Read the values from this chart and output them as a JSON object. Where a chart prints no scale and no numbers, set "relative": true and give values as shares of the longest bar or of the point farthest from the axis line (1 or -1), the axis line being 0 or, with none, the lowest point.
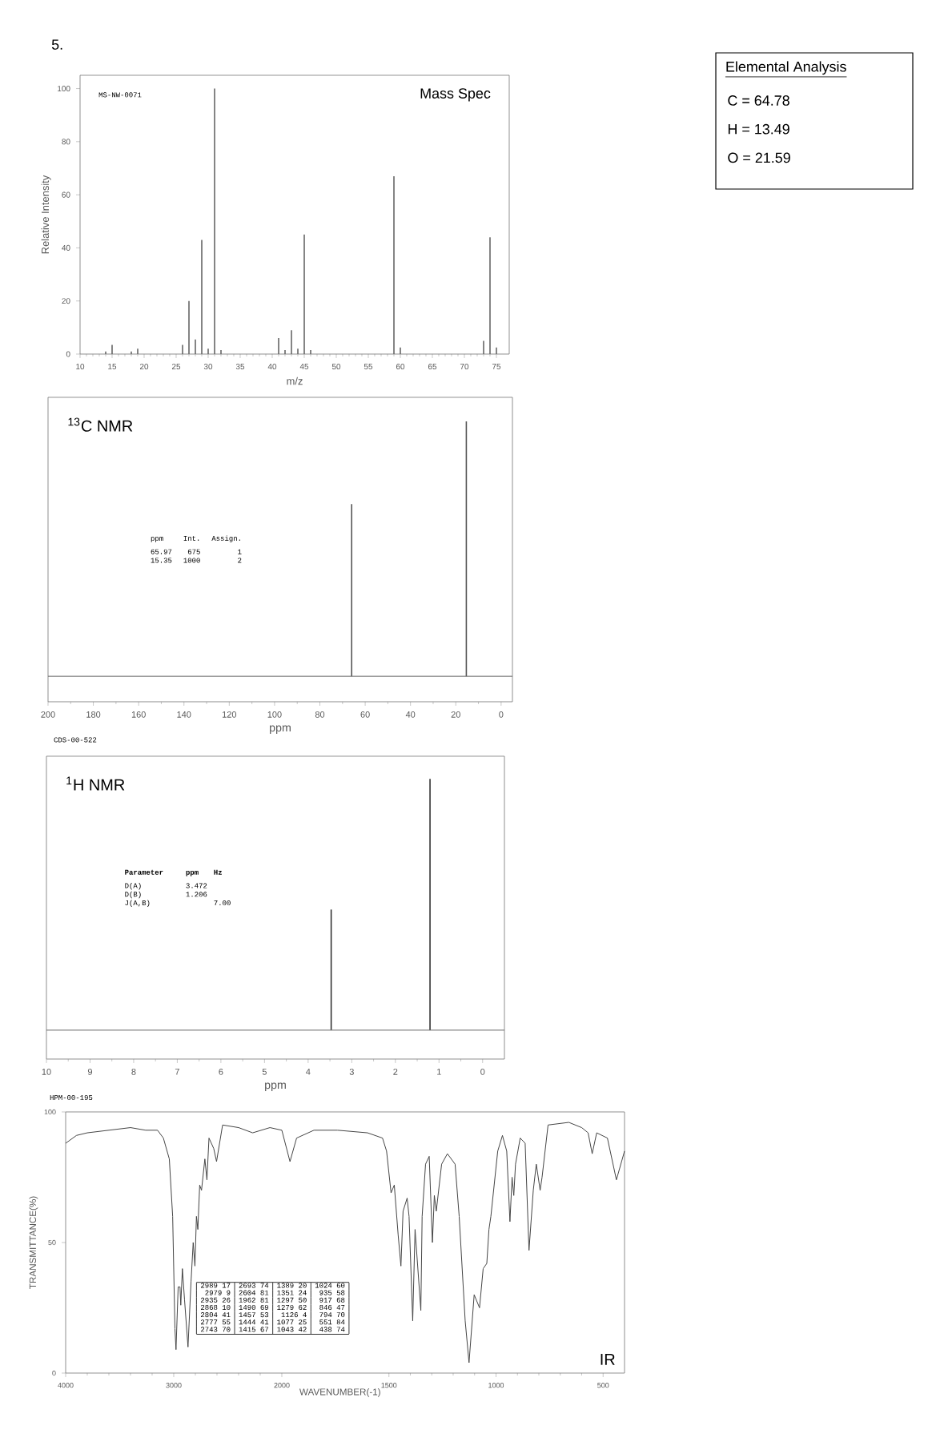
{
  "chart_data": [
    {
      "type": "bar",
      "title": "Mass Spec",
      "xlabel": "m/z",
      "ylabel": "Relative Intensity",
      "color": "#666666",
      "x": [
        14,
        15,
        18,
        19,
        26,
        27,
        28,
        29,
        30,
        31,
        32,
        41,
        42,
        43,
        44,
        45,
        46,
        59,
        60,
        73,
        74,
        75
      ],
      "values": [
        1,
        3.5,
        1,
        2,
        3.5,
        20,
        5.5,
        43,
        2,
        100,
        1.5,
        6,
        1.5,
        9,
        2,
        45,
        1.5,
        67,
        2.5,
        5,
        44,
        2.5
      ],
      "xlim": [
        10,
        77
      ],
      "xticks": [
        10,
        15,
        20,
        25,
        30,
        35,
        40,
        45,
        50,
        55,
        60,
        65,
        70,
        75
      ],
      "ylim": [
        0,
        105
      ],
      "yticks": [
        0,
        20,
        40,
        60,
        80,
        100
      ],
      "annotations": [
        "5.",
        "MS-NW-0071"
      ]
    },
    {
      "type": "other",
      "title": "Elemental Analysis",
      "annotations": [
        "C = 64.78",
        "H = 13.49",
        "O = 21.59"
      ]
    },
    {
      "type": "bar",
      "title": "$^{13}$C NMR",
      "xlabel": "ppm",
      "color": "#555555",
      "relative": true,
      "x": [
        65.97,
        15.35
      ],
      "values": [
        0.675,
        1
      ],
      "xlim": [
        200,
        -5
      ],
      "xticks": [
        200,
        180,
        160,
        140,
        120,
        100,
        80,
        60,
        40,
        20,
        0
      ],
      "tick_labels": "x",
      "annotations": [
        "CDS-00-522",
        "ppm",
        "Int.",
        "Assign.",
        "65.97",
        "675",
        "1",
        "15.35",
        "1000",
        "2"
      ]
    },
    {
      "type": "bar",
      "title": "$^{1}$H NMR",
      "xlabel": "ppm",
      "color": "#333333",
      "relative": true,
      "x": [
        3.472,
        1.206
      ],
      "values": [
        0.48,
        1
      ],
      "xlim": [
        10,
        -0.5
      ],
      "xticks": [
        10,
        9,
        8,
        7,
        6,
        5,
        4,
        3,
        2,
        1,
        0
      ],
      "tick_labels": "x",
      "annotations": [
        "Parameter",
        "ppm",
        "Hz",
        "D(A)",
        "3.472",
        "D(B)",
        "1.206",
        "J(A,B)",
        "7.00"
      ]
    },
    {
      "type": "line",
      "ylabel": "TRANSMITTANCE(%)",
      "color": "#444444",
      "x": [
        4000,
        3900,
        3800,
        3600,
        3400,
        3260,
        3150,
        3096,
        3041,
        3010,
        2989,
        2979,
        2959,
        2942,
        2935,
        2920,
        2900,
        2868,
        2840,
        2820,
        2804,
        2790,
        2777,
        2760,
        2743,
        2712,
        2693,
        2674,
        2630,
        2604,
        2548,
        2400,
        2270,
        2110,
        2000
      ],
      "values": [
        88,
        91,
        92,
        93,
        94,
        93,
        93,
        90,
        82,
        60,
        17,
        9,
        33,
        33,
        26,
        40,
        28,
        10,
        35,
        50,
        41,
        60,
        55,
        72,
        70,
        82,
        74,
        90,
        86,
        81,
        95,
        94,
        92,
        94,
        93
      ],
      "xlim": [
        4000,
        2000
      ],
      "xticks": [
        4000,
        3000,
        2000
      ],
      "ylim": [
        0,
        100
      ],
      "yticks": [
        0,
        50,
        100
      ],
      "annotations": [
        "HPM-00-195"
      ]
    },
    {
      "type": "line",
      "title": "IR",
      "xlabel": "WAVENUMBER(-1)",
      "color": "#444444",
      "x": [
        2000,
        1962,
        1931,
        1850,
        1740,
        1600,
        1530,
        1511,
        1490,
        1475,
        1457,
        1444,
        1434,
        1415,
        1406,
        1389,
        1378,
        1351,
        1345,
        1329,
        1312,
        1297,
        1288,
        1279,
        1254,
        1227,
        1191,
        1172,
        1144,
        1126,
        1102,
        1077,
        1060,
        1043,
        1033,
        1024,
        992,
        970,
        950,
        935,
        925,
        917,
        909,
        887,
        864,
        846,
        826,
        812,
        794,
        785,
        757,
        660,
        600,
        570,
        551,
        530,
        480,
        438,
        400
      ],
      "values": [
        93,
        81,
        90,
        93,
        93,
        92,
        90,
        85,
        69,
        72,
        53,
        41,
        62,
        67,
        60,
        20,
        55,
        24,
        60,
        80,
        83,
        50,
        68,
        62,
        80,
        84,
        80,
        60,
        20,
        4,
        30,
        25,
        40,
        42,
        55,
        60,
        85,
        91,
        85,
        58,
        75,
        68,
        80,
        90,
        88,
        47,
        70,
        80,
        70,
        75,
        95,
        96,
        94,
        92,
        84,
        92,
        90,
        74,
        85
      ],
      "xlim": [
        2000,
        400
      ],
      "xticks": [
        1500,
        1000,
        500
      ],
      "ylim": [
        0,
        100
      ],
      "tick_labels": "x",
      "annotations": [
        "2989 17",
        "2979 9",
        "2935 26",
        "2868 10",
        "2804 41",
        "2777 55",
        "2743 70",
        "2693 74",
        "2604 81",
        "1962 81",
        "1490 69",
        "1457 53",
        "1444 41",
        "1415 67",
        "1389 20",
        "1351 24",
        "1297 50",
        "1279 62",
        "1126 4",
        "1077 25",
        "1043 42",
        "1024 60",
        "935 58",
        "917 68",
        "846 47",
        "794 70",
        "551 84",
        "438 74"
      ]
    }
  ]
}
